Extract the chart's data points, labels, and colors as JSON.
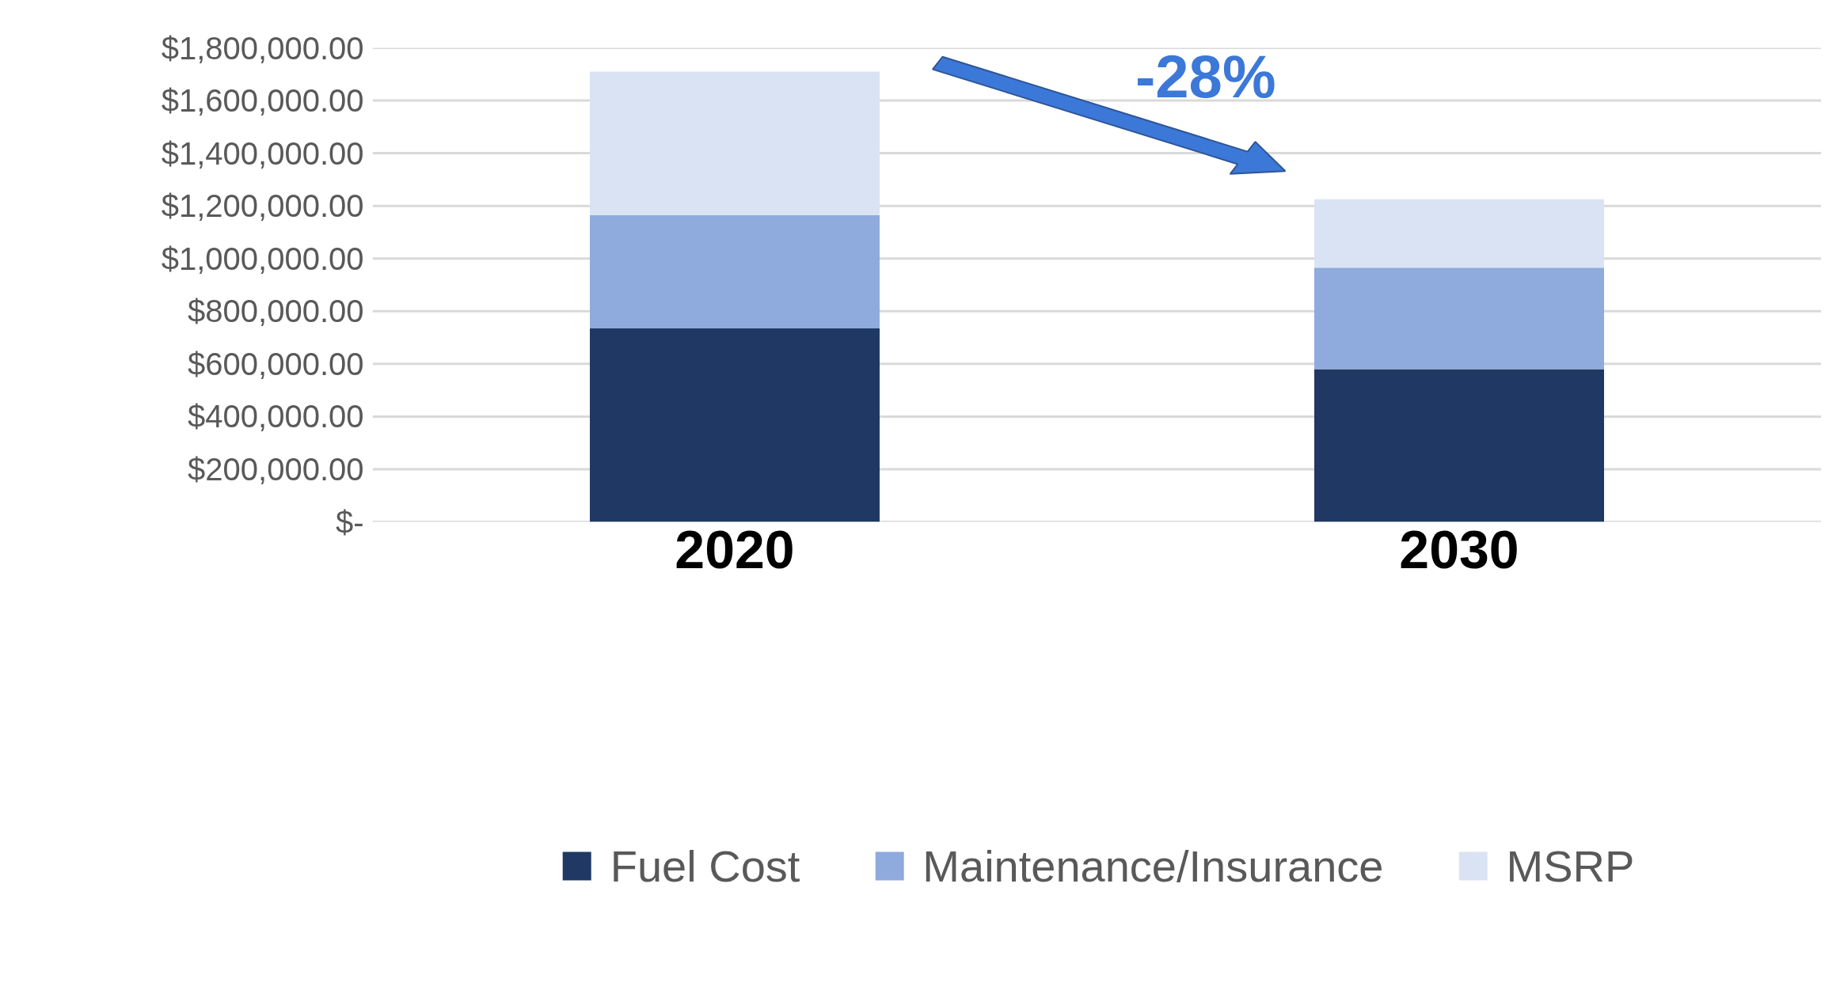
{
  "chart_data": {
    "type": "bar",
    "stacked": true,
    "categories": [
      "2020",
      "2030"
    ],
    "series": [
      {
        "name": "Fuel Cost",
        "color": "#1f3864",
        "values": [
          735000,
          580000
        ]
      },
      {
        "name": "Maintenance/Insurance",
        "color": "#8faadc",
        "values": [
          430000,
          385000
        ]
      },
      {
        "name": "MSRP",
        "color": "#dae3f3",
        "values": [
          545000,
          260000
        ]
      }
    ],
    "ylim": [
      0,
      1800000
    ],
    "yticks": [
      {
        "value": 0,
        "label": "$-"
      },
      {
        "value": 200000,
        "label": "$200,000.00"
      },
      {
        "value": 400000,
        "label": "$400,000.00"
      },
      {
        "value": 600000,
        "label": "$600,000.00"
      },
      {
        "value": 800000,
        "label": "$800,000.00"
      },
      {
        "value": 1000000,
        "label": "$1,000,000.00"
      },
      {
        "value": 1200000,
        "label": "$1,200,000.00"
      },
      {
        "value": 1400000,
        "label": "$1,400,000.00"
      },
      {
        "value": 1600000,
        "label": "$1,600,000.00"
      },
      {
        "value": 1800000,
        "label": "$1,800,000.00"
      }
    ],
    "grid": "y",
    "legend": "bottom",
    "annotations": [
      "-28%"
    ]
  }
}
